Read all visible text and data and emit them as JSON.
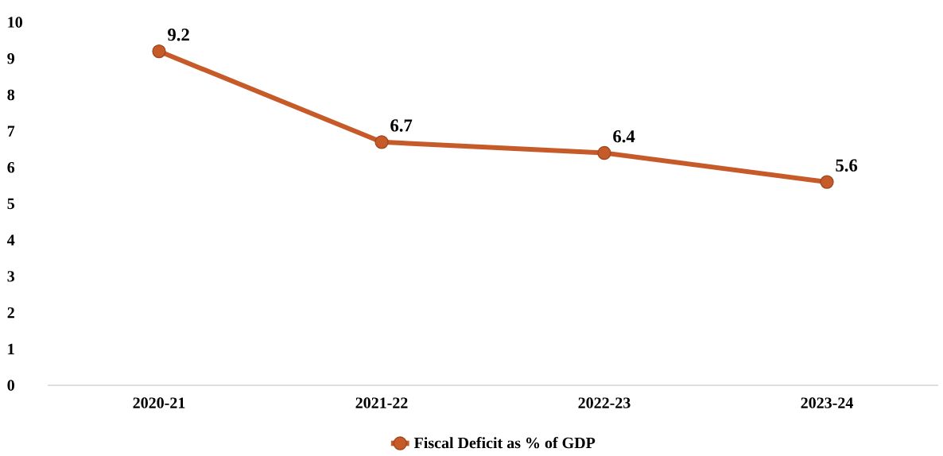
{
  "chart_data": {
    "type": "line",
    "categories": [
      "2020-21",
      "2021-22",
      "2022-23",
      "2023-24"
    ],
    "series": [
      {
        "name": "Fiscal Deficit as % of GDP",
        "color": "#c65a28",
        "values": [
          9.2,
          6.7,
          6.4,
          5.6
        ]
      }
    ],
    "ylim": [
      0,
      10
    ],
    "yticks": [
      0,
      1,
      2,
      3,
      4,
      5,
      6,
      7,
      8,
      9,
      10
    ],
    "grid": false,
    "legend": "bottom",
    "marker": "circle",
    "data_labels": true
  }
}
